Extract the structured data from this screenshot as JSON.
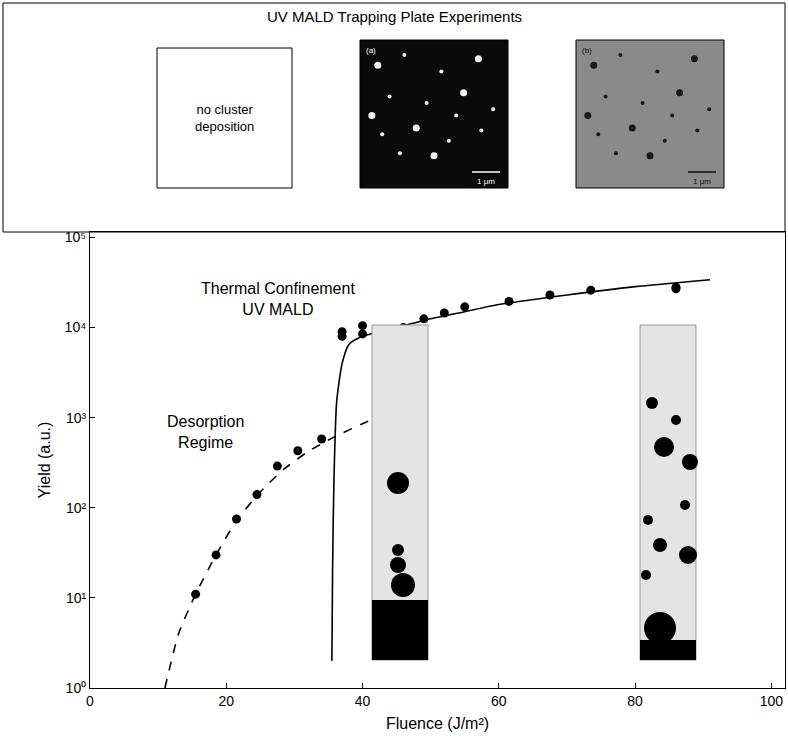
{
  "header_panel": {
    "title": "UV MALD Trapping Plate Experiments",
    "panels": [
      {
        "lines": [
          "no cluster",
          "deposition"
        ]
      },
      {
        "label": "(a)",
        "scale_bar": "1 μm"
      },
      {
        "label": "(b)",
        "scale_bar": "1 μm"
      }
    ]
  },
  "chart_data": {
    "type": "scatter",
    "x_label": "Fluence (J/m²)",
    "y_label": "Yield (a.u.)",
    "log": "y",
    "grid": false,
    "xlim": [
      0,
      102
    ],
    "ylim": [
      1,
      115000
    ],
    "xticks": [
      0,
      20,
      40,
      60,
      80,
      100
    ],
    "yticks": [
      {
        "value": 1,
        "label": "10⁰"
      },
      {
        "value": 10,
        "label": "10¹"
      },
      {
        "value": 100,
        "label": "10²"
      },
      {
        "value": 1000,
        "label": "10³"
      },
      {
        "value": 10000,
        "label": "10⁴"
      },
      {
        "value": 100000,
        "label": "10⁵"
      }
    ],
    "series": [
      {
        "type": "scatter",
        "marker": "circle",
        "color": "#000000",
        "x": [
          15.5,
          18.5,
          21.5,
          24.5,
          27.5,
          30.5,
          34,
          37,
          37,
          40,
          40,
          43,
          46,
          49,
          52,
          55,
          61.5,
          67.5,
          73.5,
          86,
          86
        ],
        "values": [
          11,
          30,
          75,
          140,
          290,
          430,
          580,
          8000,
          9000,
          8500,
          10500,
          9500,
          10000,
          12500,
          14500,
          17000,
          19500,
          23000,
          26000,
          27000,
          28000
        ]
      },
      {
        "type": "line",
        "line_style": "dashed",
        "color": "#000000",
        "x": [
          11,
          13,
          15.5,
          18.5,
          21.5,
          25,
          28.5,
          32,
          36,
          42
        ],
        "values": [
          1,
          4,
          11,
          30,
          72,
          150,
          270,
          420,
          620,
          1000
        ]
      },
      {
        "type": "line",
        "line_style": "solid",
        "color": "#000000",
        "x": [
          35.5,
          35.6,
          35.8,
          36.2,
          37,
          38,
          40,
          45,
          50,
          55,
          60,
          70,
          80,
          91
        ],
        "values": [
          2,
          20,
          200,
          1500,
          4000,
          6500,
          8000,
          10000,
          12500,
          15000,
          18000,
          23000,
          28500,
          34000
        ]
      }
    ],
    "annotations": [
      {
        "lines": [
          "Thermal Confinement",
          "UV MALD"
        ],
        "x": 16,
        "y": 21000
      },
      {
        "lines": [
          "Desorption",
          "Regime"
        ],
        "x": 11,
        "y": 700
      }
    ]
  }
}
